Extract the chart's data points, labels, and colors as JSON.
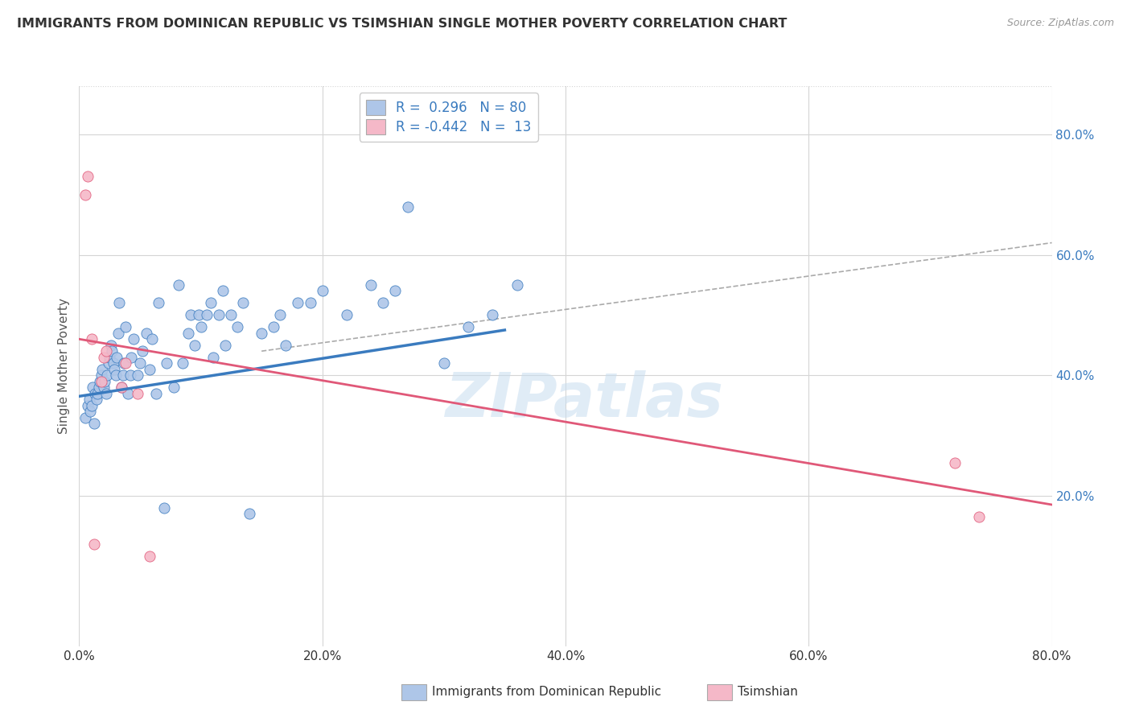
{
  "title": "IMMIGRANTS FROM DOMINICAN REPUBLIC VS TSIMSHIAN SINGLE MOTHER POVERTY CORRELATION CHART",
  "source": "Source: ZipAtlas.com",
  "ylabel": "Single Mother Poverty",
  "xlim": [
    0.0,
    0.8
  ],
  "ylim": [
    -0.05,
    0.88
  ],
  "blue_dot_color": "#aec6e8",
  "pink_dot_color": "#f5b8c8",
  "blue_line_color": "#3a7bbf",
  "pink_line_color": "#e05878",
  "dashed_line_color": "#aaaaaa",
  "watermark": "ZIPatlas",
  "background_color": "#ffffff",
  "grid_color": "#d5d5d5",
  "blue_scatter_x": [
    0.005,
    0.007,
    0.008,
    0.009,
    0.01,
    0.011,
    0.012,
    0.013,
    0.014,
    0.015,
    0.016,
    0.017,
    0.018,
    0.019,
    0.02,
    0.021,
    0.022,
    0.023,
    0.024,
    0.025,
    0.026,
    0.027,
    0.028,
    0.029,
    0.03,
    0.031,
    0.032,
    0.033,
    0.035,
    0.036,
    0.037,
    0.038,
    0.04,
    0.042,
    0.043,
    0.045,
    0.048,
    0.05,
    0.052,
    0.055,
    0.058,
    0.06,
    0.063,
    0.065,
    0.07,
    0.072,
    0.078,
    0.082,
    0.085,
    0.09,
    0.092,
    0.095,
    0.098,
    0.1,
    0.105,
    0.108,
    0.11,
    0.115,
    0.118,
    0.12,
    0.125,
    0.13,
    0.135,
    0.14,
    0.15,
    0.16,
    0.165,
    0.17,
    0.18,
    0.19,
    0.2,
    0.22,
    0.24,
    0.25,
    0.26,
    0.27,
    0.3,
    0.32,
    0.34,
    0.36
  ],
  "blue_scatter_y": [
    0.33,
    0.35,
    0.36,
    0.34,
    0.35,
    0.38,
    0.32,
    0.37,
    0.36,
    0.37,
    0.38,
    0.39,
    0.4,
    0.41,
    0.38,
    0.39,
    0.37,
    0.4,
    0.42,
    0.43,
    0.45,
    0.44,
    0.42,
    0.41,
    0.4,
    0.43,
    0.47,
    0.52,
    0.38,
    0.4,
    0.42,
    0.48,
    0.37,
    0.4,
    0.43,
    0.46,
    0.4,
    0.42,
    0.44,
    0.47,
    0.41,
    0.46,
    0.37,
    0.52,
    0.18,
    0.42,
    0.38,
    0.55,
    0.42,
    0.47,
    0.5,
    0.45,
    0.5,
    0.48,
    0.5,
    0.52,
    0.43,
    0.5,
    0.54,
    0.45,
    0.5,
    0.48,
    0.52,
    0.17,
    0.47,
    0.48,
    0.5,
    0.45,
    0.52,
    0.52,
    0.54,
    0.5,
    0.55,
    0.52,
    0.54,
    0.68,
    0.42,
    0.48,
    0.5,
    0.55
  ],
  "pink_scatter_x": [
    0.005,
    0.007,
    0.01,
    0.012,
    0.018,
    0.02,
    0.022,
    0.035,
    0.038,
    0.048,
    0.058,
    0.72,
    0.74
  ],
  "pink_scatter_y": [
    0.7,
    0.73,
    0.46,
    0.12,
    0.39,
    0.43,
    0.44,
    0.38,
    0.42,
    0.37,
    0.1,
    0.255,
    0.165
  ],
  "blue_line_x": [
    0.0,
    0.35
  ],
  "blue_line_y": [
    0.365,
    0.475
  ],
  "pink_line_x": [
    0.0,
    0.8
  ],
  "pink_line_y": [
    0.46,
    0.185
  ],
  "dashed_line_x": [
    0.15,
    0.8
  ],
  "dashed_line_y": [
    0.44,
    0.62
  ]
}
